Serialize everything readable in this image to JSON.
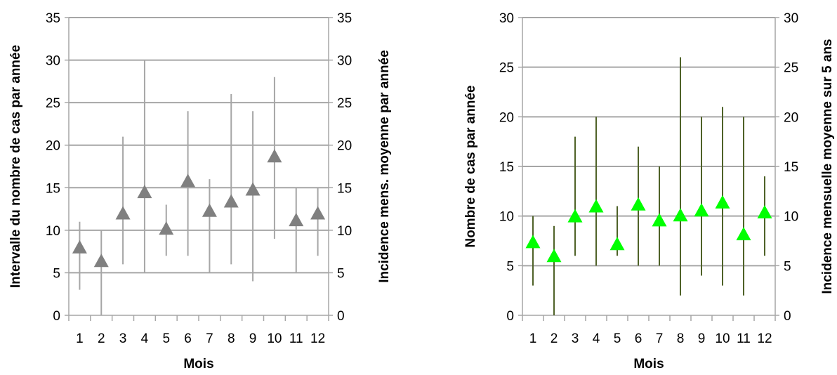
{
  "chart_data": [
    {
      "type": "scatter",
      "x": [
        1,
        2,
        3,
        4,
        5,
        6,
        7,
        8,
        9,
        10,
        11,
        12
      ],
      "categories": [
        "1",
        "2",
        "3",
        "4",
        "5",
        "6",
        "7",
        "8",
        "9",
        "10",
        "11",
        "12"
      ],
      "series": [
        {
          "values": [
            7.9,
            6.3,
            11.9,
            14.4,
            10.1,
            15.7,
            12.2,
            13.3,
            14.7,
            18.6,
            11.1,
            11.9
          ],
          "min": [
            3,
            0,
            6,
            5,
            7,
            7,
            5,
            6,
            4,
            9,
            5,
            7
          ],
          "max": [
            11,
            10,
            21,
            30,
            13,
            24,
            16,
            26,
            24,
            28,
            15,
            15
          ],
          "color": "#808080",
          "whisker_color": "#a6a6a6"
        }
      ],
      "xlabel": "Mois",
      "ylabel": "Intervalle du nombre de cas par année",
      "y2label": "Incidence mens. moyenne par année",
      "ylim": [
        0,
        35
      ],
      "yticks": [
        0,
        5,
        10,
        15,
        20,
        25,
        30,
        35
      ],
      "y2lim": [
        0,
        35
      ],
      "y2ticks": [
        0,
        5,
        10,
        15,
        20,
        25,
        30,
        35
      ],
      "grid": true,
      "gridline_color": "#a6a6a6"
    },
    {
      "type": "scatter",
      "x": [
        1,
        2,
        3,
        4,
        5,
        6,
        7,
        8,
        9,
        10,
        11,
        12
      ],
      "categories": [
        "1",
        "2",
        "3",
        "4",
        "5",
        "6",
        "7",
        "8",
        "9",
        "10",
        "11",
        "12"
      ],
      "series": [
        {
          "values": [
            7.3,
            5.9,
            9.9,
            10.9,
            7.1,
            11.1,
            9.5,
            10.0,
            10.5,
            11.3,
            8.1,
            10.3
          ],
          "min": [
            3,
            0,
            6,
            5,
            6,
            5,
            5,
            2,
            4,
            3,
            2,
            6
          ],
          "max": [
            10,
            9,
            18,
            20,
            11,
            17,
            15,
            26,
            20,
            21,
            20,
            14
          ],
          "color": "#00ff00",
          "whisker_color": "#4f6228"
        }
      ],
      "xlabel": "Mois",
      "ylabel": "Nombre de cas par année",
      "y2label": "Incidence mensuelle moyenne sur 5 ans",
      "ylim": [
        0,
        30
      ],
      "yticks": [
        0,
        5,
        10,
        15,
        20,
        25,
        30
      ],
      "y2lim": [
        0,
        30
      ],
      "y2ticks": [
        0,
        5,
        10,
        15,
        20,
        25,
        30
      ],
      "grid": true,
      "gridline_color": "#a6a6a6"
    }
  ]
}
